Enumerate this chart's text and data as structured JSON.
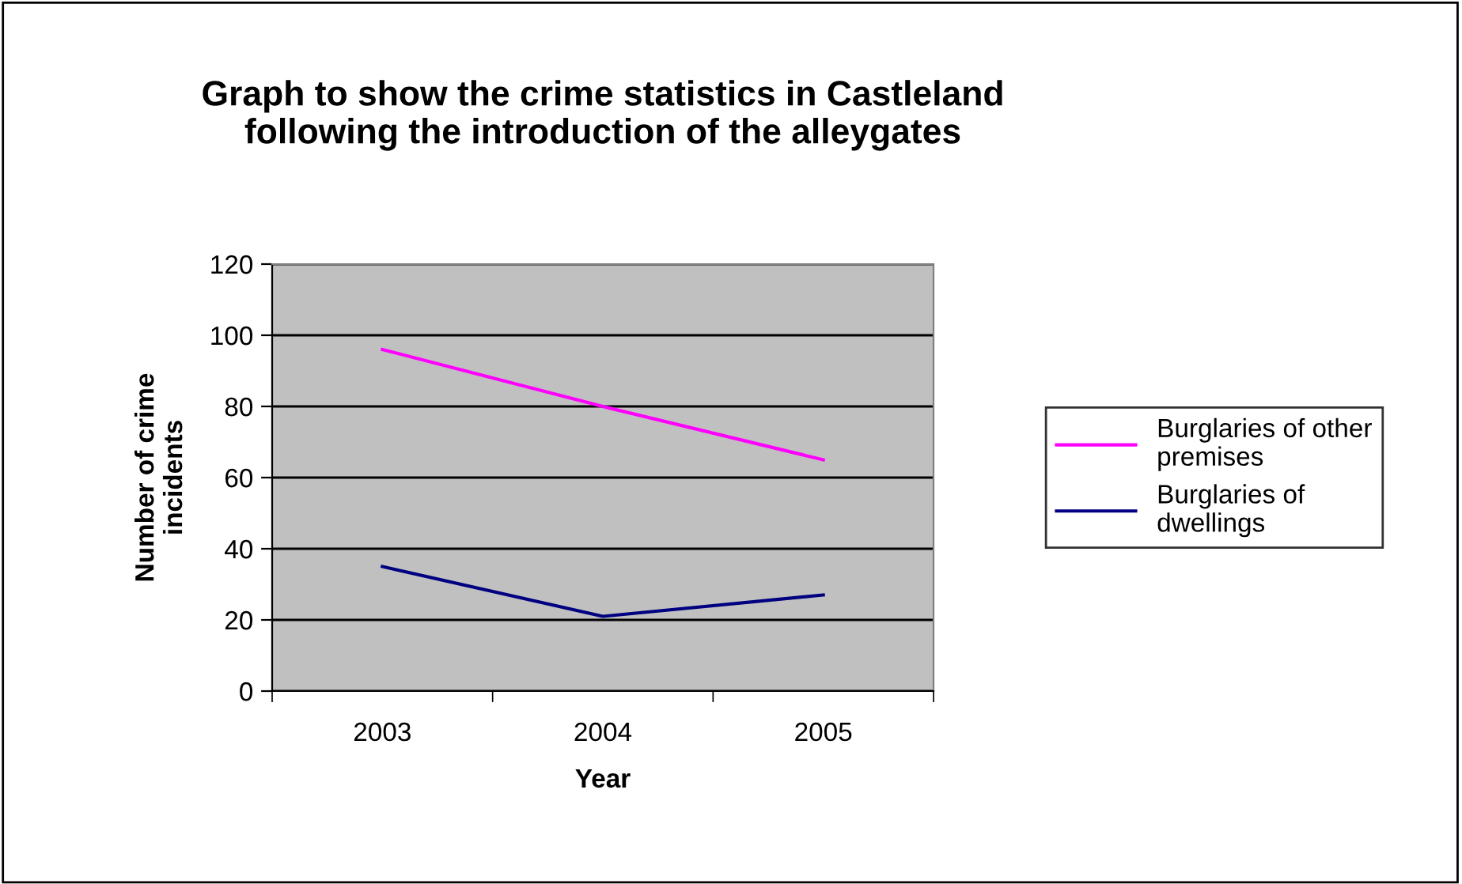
{
  "chart_data": {
    "type": "line",
    "title": "Graph to show the crime statistics in Castleland\nfollowing the introduction of the alleygates",
    "xlabel": "Year",
    "ylabel": "Number of crime\nincidents",
    "categories": [
      "2003",
      "2004",
      "2005"
    ],
    "series": [
      {
        "name": "Burglaries of other\npremises",
        "color": "#ff00ff",
        "values": [
          96,
          80,
          65
        ]
      },
      {
        "name": "Burglaries of\ndwellings",
        "color": "#000080",
        "values": [
          35,
          21,
          27
        ]
      }
    ],
    "ylim": [
      0,
      120
    ],
    "yticks": [
      0,
      20,
      40,
      60,
      80,
      100,
      120
    ],
    "grid": "y",
    "legend": "right",
    "marker": "none"
  }
}
